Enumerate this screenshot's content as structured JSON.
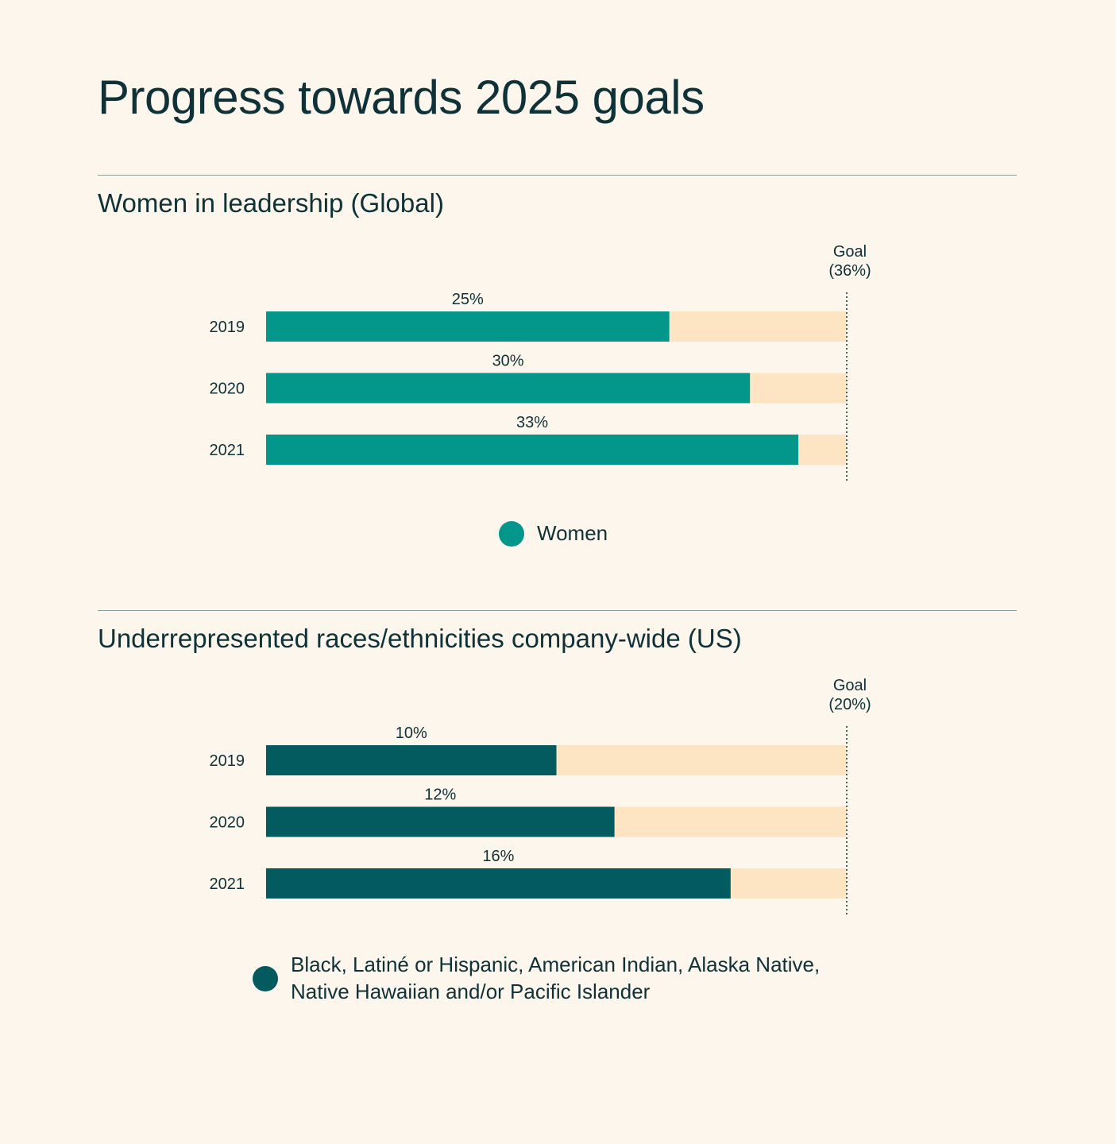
{
  "page_title": "Progress towards 2025 goals",
  "colors": {
    "background": "#fcf6ec",
    "remaining": "#fde4c3",
    "women": "#03968a",
    "urm": "#035a5f",
    "text": "#0f3138"
  },
  "chart_data": [
    {
      "type": "bar",
      "orientation": "horizontal",
      "title": "Women in leadership (Global)",
      "categories": [
        "2019",
        "2020",
        "2021"
      ],
      "values": [
        25,
        30,
        33
      ],
      "value_labels": [
        "25%",
        "30%",
        "33%"
      ],
      "goal_value": 36,
      "goal_label_line1": "Goal",
      "goal_label_line2": "(36%)",
      "xlim": [
        0,
        36
      ],
      "series_name": "Women",
      "color_key": "women",
      "legend_position": "bottom-center"
    },
    {
      "type": "bar",
      "orientation": "horizontal",
      "title": "Underrepresented races/ethnicities company-wide (US)",
      "categories": [
        "2019",
        "2020",
        "2021"
      ],
      "values": [
        10,
        12,
        16
      ],
      "value_labels": [
        "10%",
        "12%",
        "16%"
      ],
      "goal_value": 20,
      "goal_label_line1": "Goal",
      "goal_label_line2": "(20%)",
      "xlim": [
        0,
        20
      ],
      "series_name": "Black, Latiné or Hispanic, American Indian, Alaska Native, Native Hawaiian and/or Pacific Islander",
      "color_key": "urm",
      "legend_position": "bottom-center"
    }
  ]
}
